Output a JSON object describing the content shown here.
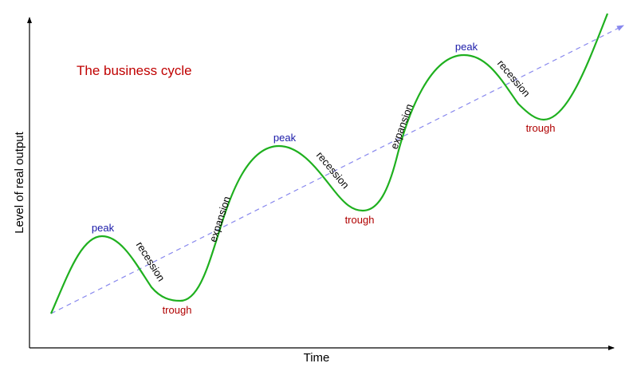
{
  "title": "The business cycle",
  "axes": {
    "x_label": "Time",
    "y_label": "Level of real output"
  },
  "labels": {
    "peak": "peak",
    "trough": "trough",
    "recession": "recession",
    "expansion": "expansion"
  },
  "colors": {
    "title": "#c00000",
    "peak": "#1a1aa8",
    "trough": "#b00000",
    "curve": "#1fb01f",
    "trend": "#8888ee",
    "axis": "#000000"
  }
}
